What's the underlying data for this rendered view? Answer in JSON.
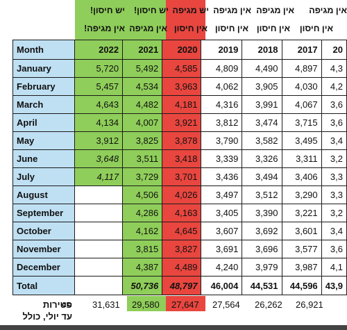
{
  "captions": {
    "c2022_line1": "יש חיסון!",
    "c2022_line2": "אין מגיפה!",
    "c2021_line1": "יש חיסון!",
    "c2021_line2": "אין מגיפה",
    "c2020_line1": "יש מגיפה",
    "c2020_line2": "אין חיסון",
    "c2019_line1": "אין מגיפה",
    "c2019_line2": "אין חיסון",
    "c2018_line1": "אין מגיפה",
    "c2018_line2": "אין חיסון",
    "c2017_line1": "אין מגיפה",
    "c2017_line2": "אין חיסון"
  },
  "table": {
    "month_header": "Month",
    "years": [
      "2022",
      "2021",
      "2020",
      "2019",
      "2018",
      "2017",
      "20"
    ],
    "rows": [
      {
        "month": "January",
        "values": [
          "5,720",
          "5,492",
          "4,585",
          "4,809",
          "4,490",
          "4,897",
          "4,3"
        ]
      },
      {
        "month": "February",
        "values": [
          "5,457",
          "4,534",
          "3,963",
          "4,062",
          "3,905",
          "4,030",
          "4,2"
        ]
      },
      {
        "month": "March",
        "values": [
          "4,643",
          "4,482",
          "4,181",
          "4,316",
          "3,991",
          "4,067",
          "3,6"
        ]
      },
      {
        "month": "April",
        "values": [
          "4,134",
          "4,007",
          "3,921",
          "3,812",
          "3,474",
          "3,715",
          "3,6"
        ]
      },
      {
        "month": "May",
        "values": [
          "3,912",
          "3,825",
          "3,878",
          "3,790",
          "3,582",
          "3,495",
          "3,4"
        ]
      },
      {
        "month": "June",
        "values": [
          "3,648",
          "3,511",
          "3,418",
          "3,339",
          "3,326",
          "3,311",
          "3,2"
        ]
      },
      {
        "month": "July",
        "values": [
          "4,117",
          "3,729",
          "3,701",
          "3,436",
          "3,494",
          "3,406",
          "3,3"
        ]
      },
      {
        "month": "August",
        "values": [
          "",
          "4,506",
          "4,026",
          "3,497",
          "3,512",
          "3,290",
          "3,3"
        ]
      },
      {
        "month": "September",
        "values": [
          "",
          "4,286",
          "4,163",
          "3,405",
          "3,390",
          "3,221",
          "3,2"
        ]
      },
      {
        "month": "October",
        "values": [
          "",
          "4,162",
          "4,645",
          "3,607",
          "3,692",
          "3,601",
          "3,4"
        ]
      },
      {
        "month": "November",
        "values": [
          "",
          "3,815",
          "3,827",
          "3,691",
          "3,696",
          "3,577",
          "3,6"
        ]
      },
      {
        "month": "December",
        "values": [
          "",
          "4,387",
          "4,489",
          "4,240",
          "3,979",
          "3,987",
          "4,1"
        ]
      }
    ],
    "total_label": "Total",
    "totals": [
      "",
      "50,736",
      "48,797",
      "46,004",
      "44,531",
      "44,596",
      "43,9"
    ]
  },
  "footer": {
    "arrow": "<=",
    "label_line1": "פטירות",
    "label_line2": "עד יולי, כולל",
    "values": [
      "31,631",
      "29,580",
      "27,647",
      "27,564",
      "26,262",
      "26,921"
    ]
  },
  "colors": {
    "vaccine_green": "#8fce5a",
    "pandemic_red": "#e8463f",
    "month_blue": "#bfe0f3"
  }
}
